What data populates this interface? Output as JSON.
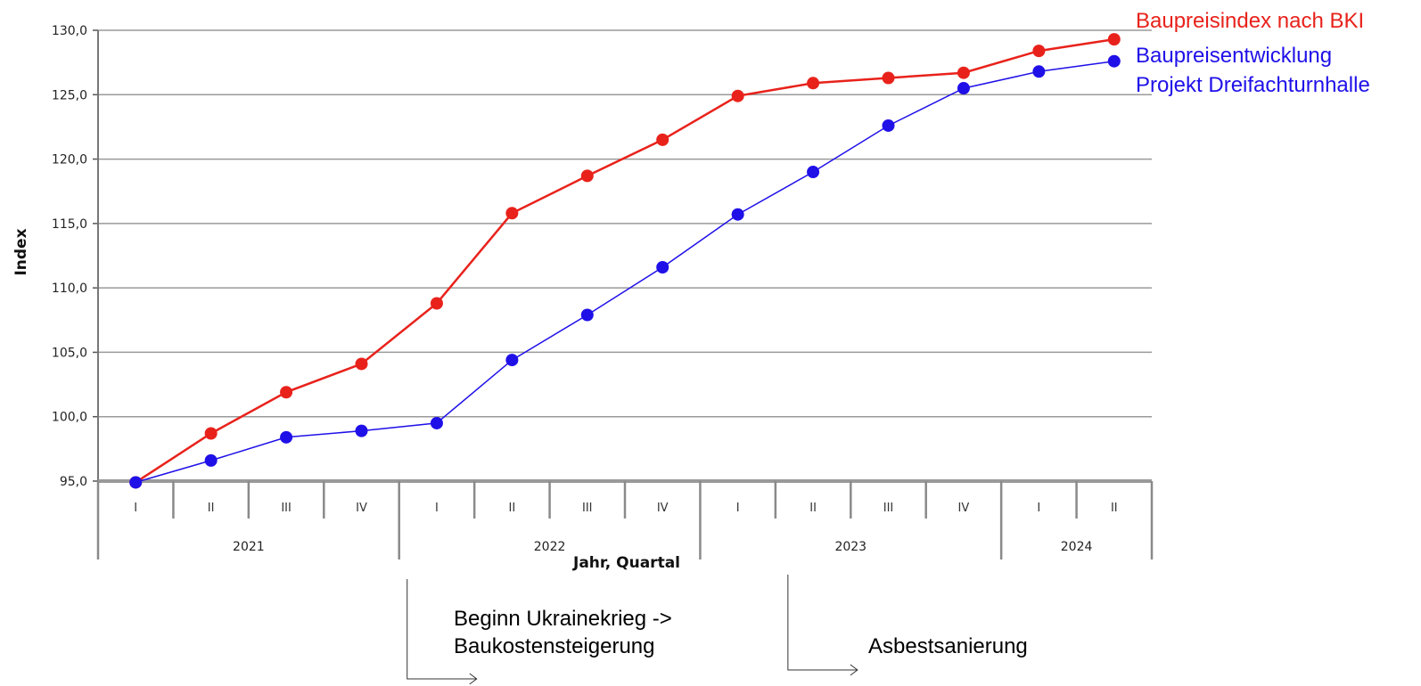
{
  "chart_data": {
    "type": "line",
    "xlabel": "Jahr, Quartal",
    "ylabel": "Index",
    "ylim": [
      95,
      130
    ],
    "y_ticks": [
      "95,0",
      "100,0",
      "105,0",
      "110,0",
      "115,0",
      "120,0",
      "125,0",
      "130,0"
    ],
    "grid": "horizontal",
    "legend_position": "top-right",
    "quarters": [
      "I",
      "II",
      "III",
      "IV",
      "I",
      "II",
      "III",
      "IV",
      "I",
      "II",
      "III",
      "IV",
      "I",
      "II"
    ],
    "years": [
      {
        "label": "2021",
        "quarters": 4
      },
      {
        "label": "2022",
        "quarters": 4
      },
      {
        "label": "2023",
        "quarters": 4
      },
      {
        "label": "2024",
        "quarters": 2
      }
    ],
    "series": [
      {
        "name": "Baupreisindex nach BKI",
        "color": "#e8221b",
        "values": [
          94.9,
          98.7,
          101.9,
          104.1,
          108.8,
          115.8,
          118.7,
          121.5,
          124.9,
          125.9,
          126.3,
          126.7,
          128.4,
          129.3
        ]
      },
      {
        "name": "Baupreisentwicklung Projekt Dreifachturnhalle",
        "name_lines": [
          "Baupreisentwicklung",
          "Projekt Dreifachturnhalle"
        ],
        "color": "#1f10e8",
        "values": [
          94.9,
          96.6,
          98.4,
          98.9,
          99.5,
          104.4,
          107.9,
          111.6,
          115.7,
          119.0,
          122.6,
          125.5,
          126.8,
          127.6
        ]
      }
    ],
    "annotations": [
      {
        "lines": [
          "Beginn Ukrainekrieg ->",
          "Baukostensteigerung"
        ],
        "quarter_index": 4
      },
      {
        "lines": [
          "Asbestsanierung"
        ],
        "quarter_index": 9
      }
    ]
  }
}
